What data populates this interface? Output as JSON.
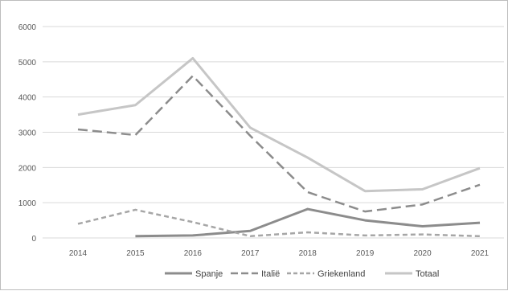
{
  "chart_data": {
    "type": "line",
    "title": "",
    "xlabel": "",
    "ylabel": "",
    "x": [
      "2014",
      "2015",
      "2016",
      "2017",
      "2018",
      "2019",
      "2020",
      "2021"
    ],
    "ylim": [
      0,
      6000
    ],
    "yticks": [
      0,
      1000,
      2000,
      3000,
      4000,
      5000,
      6000
    ],
    "grid": true,
    "legend": "bottom",
    "series": [
      {
        "name": "Spanje",
        "color": "#8c8c8c",
        "dash": "solid",
        "width": 3,
        "values": [
          null,
          50,
          70,
          200,
          820,
          500,
          330,
          430
        ]
      },
      {
        "name": "Italië",
        "color": "#8c8c8c",
        "dash": "long-dash",
        "width": 2.5,
        "values": [
          3080,
          2920,
          4600,
          2900,
          1300,
          750,
          950,
          1510
        ]
      },
      {
        "name": "Griekenland",
        "color": "#a6a6a6",
        "dash": "short-dash",
        "width": 2.5,
        "values": [
          400,
          800,
          450,
          50,
          160,
          70,
          100,
          50
        ]
      },
      {
        "name": "Totaal",
        "color": "#c6c6c6",
        "dash": "solid",
        "width": 3,
        "values": [
          3500,
          3770,
          5100,
          3130,
          2280,
          1330,
          1380,
          1980
        ]
      }
    ]
  }
}
